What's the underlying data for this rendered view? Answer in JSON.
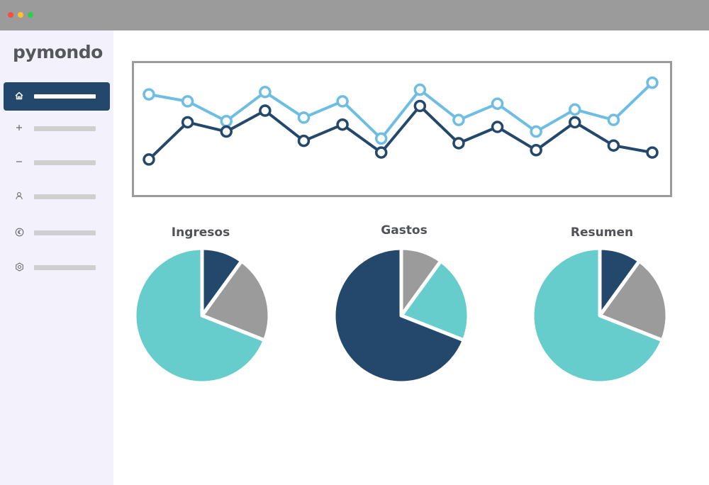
{
  "window": {
    "controls": [
      "close",
      "minimize",
      "maximize"
    ]
  },
  "app": {
    "logo_text": "pymondo"
  },
  "sidebar": {
    "items": [
      {
        "icon": "home-icon",
        "active": true
      },
      {
        "icon": "plus-icon",
        "active": false
      },
      {
        "icon": "minus-icon",
        "active": false
      },
      {
        "icon": "user-icon",
        "active": false
      },
      {
        "icon": "euro-icon",
        "active": false
      },
      {
        "icon": "settings-icon",
        "active": false
      }
    ]
  },
  "colors": {
    "navy": "#24486b",
    "light_blue": "#6ebde3",
    "teal": "#66cccc",
    "gray": "#9b9b9b"
  },
  "pies": [
    {
      "title": "Ingresos"
    },
    {
      "title": "Gastos"
    },
    {
      "title": "Resumen"
    }
  ],
  "chart_data": [
    {
      "type": "line",
      "x": [
        1,
        2,
        3,
        4,
        5,
        6,
        7,
        8,
        9,
        10,
        11,
        12,
        13,
        14
      ],
      "series": [
        {
          "color": "#6ebde3",
          "values": [
            78,
            72,
            55,
            80,
            58,
            72,
            40,
            82,
            56,
            70,
            46,
            65,
            56,
            88
          ]
        },
        {
          "color": "#24486b",
          "values": [
            22,
            54,
            46,
            64,
            38,
            52,
            28,
            68,
            36,
            50,
            30,
            54,
            34,
            28
          ]
        }
      ],
      "ylim": [
        0,
        100
      ],
      "grid": false
    },
    {
      "type": "pie",
      "title": "Ingresos",
      "slices": [
        {
          "value": 10,
          "color": "#24486b"
        },
        {
          "value": 21,
          "color": "#9b9b9b"
        },
        {
          "value": 69,
          "color": "#66cccc"
        }
      ]
    },
    {
      "type": "pie",
      "title": "Gastos",
      "slices": [
        {
          "value": 10,
          "color": "#9b9b9b"
        },
        {
          "value": 21,
          "color": "#66cccc"
        },
        {
          "value": 69,
          "color": "#24486b"
        }
      ]
    },
    {
      "type": "pie",
      "title": "Resumen",
      "slices": [
        {
          "value": 10,
          "color": "#24486b"
        },
        {
          "value": 21,
          "color": "#9b9b9b"
        },
        {
          "value": 69,
          "color": "#66cccc"
        }
      ]
    }
  ]
}
